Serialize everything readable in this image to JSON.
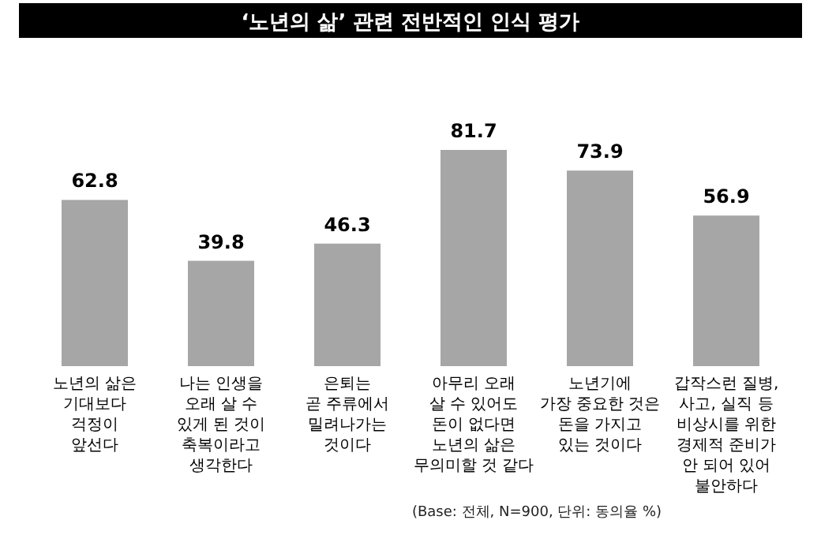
{
  "chart_data": {
    "type": "bar",
    "title": "‘노년의 삶’ 관련 전반적인 인식 평가",
    "categories": [
      "노년의 삶은\n기대보다\n걱정이\n앞선다",
      "나는 인생을\n오래 살 수\n있게 된 것이\n축복이라고\n생각한다",
      "은퇴는\n곧 주류에서\n밀려나가는\n것이다",
      "아무리 오래\n살 수 있어도\n돈이 없다면\n노년의 삶은\n무의미할 것 같다",
      "노년기에\n가장 중요한 것은\n돈을 가지고\n있는 것이다",
      "갑작스런 질병,\n사고, 실직 등\n비상시를 위한\n경제적 준비가\n안 되어 있어\n불안하다"
    ],
    "values": [
      62.8,
      39.8,
      46.3,
      81.7,
      73.9,
      56.9
    ],
    "color": "#a6a6a6",
    "data_labels": true,
    "annotations": [
      "(Base: 전체, N=900, 단위: 동의율 %)"
    ]
  }
}
